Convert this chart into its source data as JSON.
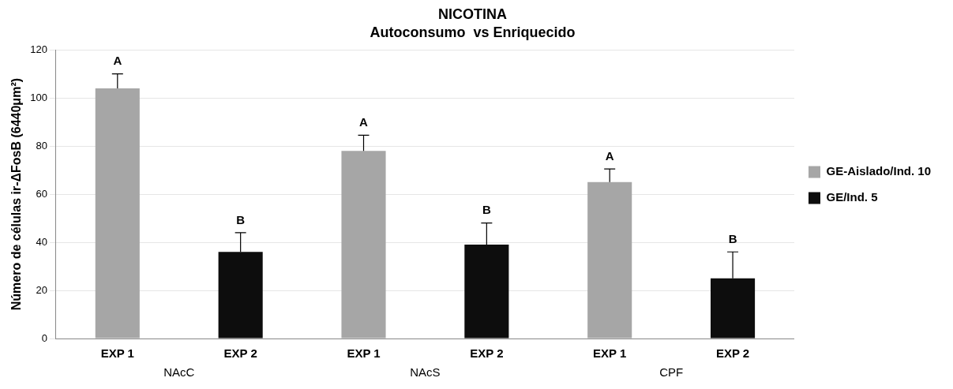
{
  "chart_data": {
    "type": "bar",
    "title": "NICOTINA",
    "subtitle": "Autoconsumo  vs Enriquecido",
    "ylabel": "Número de células ir-ΔFosB (6440μm²)",
    "categories": [
      "EXP 1",
      "EXP 2",
      "EXP 1",
      "EXP 2",
      "EXP 1",
      "EXP 2"
    ],
    "series": [
      {
        "name": "GE-Aislado/Ind. 10",
        "color": "#a6a6a6",
        "values": [
          104,
          null,
          78,
          null,
          65,
          null
        ],
        "errors": [
          [
            104,
            110
          ],
          null,
          [
            78,
            84.5
          ],
          null,
          [
            65,
            70.5
          ],
          null
        ],
        "value_labels": [
          "A",
          null,
          "A",
          null,
          "A",
          null
        ]
      },
      {
        "name": "GE/Ind. 5",
        "color": "#0d0d0d",
        "values": [
          null,
          36,
          null,
          39,
          null,
          25
        ],
        "errors": [
          null,
          [
            36,
            44
          ],
          null,
          [
            39,
            48
          ],
          null,
          [
            25,
            36
          ]
        ],
        "value_labels": [
          null,
          "B",
          null,
          "B",
          null,
          "B"
        ]
      }
    ],
    "ylim": [
      0,
      120
    ],
    "yticks": [
      0,
      20,
      40,
      60,
      80,
      100,
      120
    ],
    "grid": "y",
    "legend": "right",
    "annotations": [
      "NAcC",
      "NAcS",
      "CPF"
    ]
  }
}
